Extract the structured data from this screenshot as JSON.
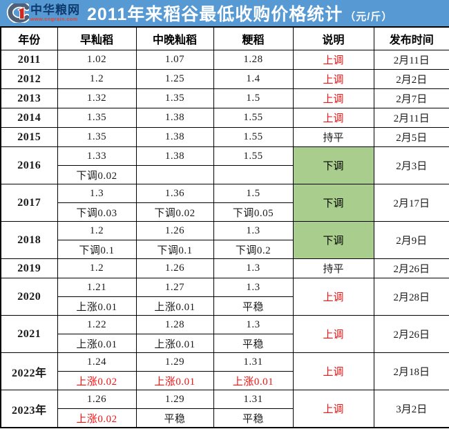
{
  "header": {
    "title": "2011年来稻谷最低收购价格统计",
    "unit": "（元/斤）"
  },
  "logo": {
    "name": "中华粮网",
    "site": "www.cngrain.com",
    "icon": "cngrain-g-logo-icon"
  },
  "colors": {
    "banner_blue": "#5699d3",
    "accent_red": "#f01414",
    "down_green": "#a9cd8c",
    "logo_navy": "#0e3a6e",
    "logo_red": "#d3281e",
    "border_black": "#000000"
  },
  "table": {
    "columns": [
      "年份",
      "早籼稻",
      "中晚籼稻",
      "粳稻",
      "说明",
      "发布时间"
    ],
    "rows": [
      {
        "year": "2011",
        "prices": [
          "1.02",
          "1.07",
          "1.28"
        ],
        "status": "上调",
        "status_color": "red",
        "date": "2月11日"
      },
      {
        "year": "2012",
        "prices": [
          "1.2",
          "1.25",
          "1.4"
        ],
        "status": "上调",
        "status_color": "red",
        "date": "2月2日"
      },
      {
        "year": "2013",
        "prices": [
          "1.32",
          "1.35",
          "1.5"
        ],
        "status": "上调",
        "status_color": "red",
        "date": "2月7日"
      },
      {
        "year": "2014",
        "prices": [
          "1.35",
          "1.38",
          "1.55"
        ],
        "status": "上调",
        "status_color": "red",
        "date": "2月11日"
      },
      {
        "year": "2015",
        "prices": [
          "1.35",
          "1.38",
          "1.55"
        ],
        "status": "持平",
        "status_color": "black",
        "date": "2月5日"
      },
      {
        "year": "2016",
        "prices": [
          "1.33",
          "1.38",
          "1.55"
        ],
        "changes": [
          "下调0.02",
          "",
          ""
        ],
        "changes_red": [
          false,
          false,
          false
        ],
        "status": "下调",
        "status_color": "black",
        "status_bg": "green",
        "date": "2月3日"
      },
      {
        "year": "2017",
        "prices": [
          "1.3",
          "1.36",
          "1.5"
        ],
        "changes": [
          "下调0.03",
          "下调0.02",
          "下调0.05"
        ],
        "changes_red": [
          false,
          false,
          false
        ],
        "status": "下调",
        "status_color": "black",
        "status_bg": "green",
        "date": "2月17日"
      },
      {
        "year": "2018",
        "prices": [
          "1.2",
          "1.26",
          "1.3"
        ],
        "changes": [
          "下调0.1",
          "下调0.1",
          "下调0.2"
        ],
        "changes_red": [
          false,
          false,
          false
        ],
        "status": "下调",
        "status_color": "black",
        "status_bg": "green",
        "date": "2月9日"
      },
      {
        "year": "2019",
        "prices": [
          "1.2",
          "1.26",
          "1.3"
        ],
        "status": "持平",
        "status_color": "black",
        "date": "2月26日"
      },
      {
        "year": "2020",
        "prices": [
          "1.21",
          "1.27",
          "1.3"
        ],
        "changes": [
          "上涨0.01",
          "上涨0.01",
          "平稳"
        ],
        "changes_red": [
          false,
          false,
          false
        ],
        "status": "上调",
        "status_color": "red",
        "date": "2月28日"
      },
      {
        "year": "2021",
        "prices": [
          "1.22",
          "1.28",
          "1.3"
        ],
        "changes": [
          "上涨0.01",
          "上涨0.01",
          "平稳"
        ],
        "changes_red": [
          false,
          false,
          false
        ],
        "status": "上调",
        "status_color": "red",
        "date": "2月26日"
      },
      {
        "year": "2022年",
        "prices": [
          "1.24",
          "1.29",
          "1.31"
        ],
        "changes": [
          "上涨0.02",
          "上涨0.01",
          "上涨0.01"
        ],
        "changes_red": [
          true,
          true,
          true
        ],
        "status": "上调",
        "status_color": "red",
        "date": "2月18日"
      },
      {
        "year": "2023年",
        "prices": [
          "1.26",
          "1.29",
          "1.31"
        ],
        "changes": [
          "上涨0.02",
          "平稳",
          "平稳"
        ],
        "changes_red": [
          true,
          false,
          false
        ],
        "status": "上调",
        "status_color": "red",
        "date": "3月2日"
      }
    ]
  }
}
